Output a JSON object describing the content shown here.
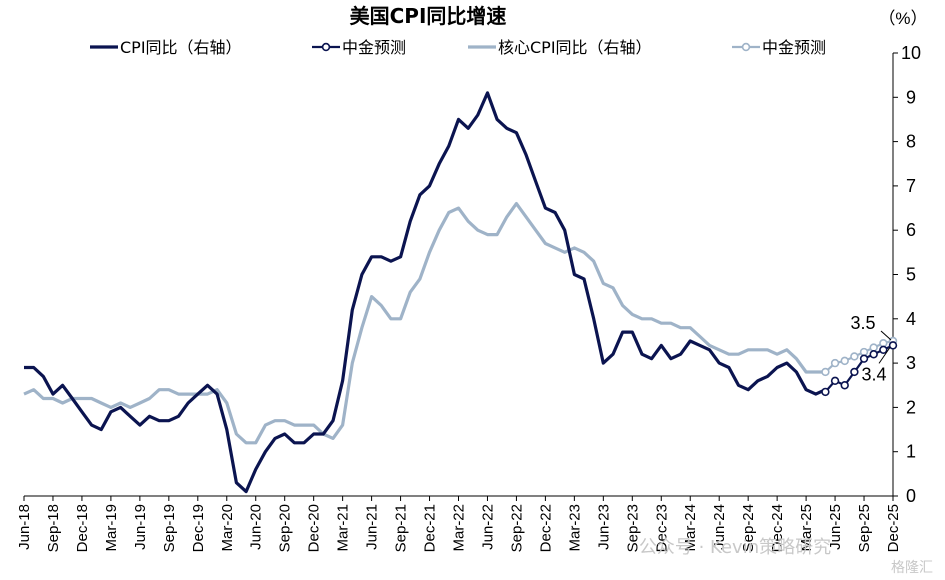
{
  "title": "美国CPI同比增速",
  "unit": "（%）",
  "watermark": "公众号 · Kevin策略研究",
  "corner_mark": "格隆汇",
  "colors": {
    "cpi": "#0b1450",
    "core": "#9fb3c8",
    "axis": "#000000"
  },
  "legend": [
    {
      "label": "CPI同比（右轴）",
      "style": "cpi-line"
    },
    {
      "label": "中金预测",
      "style": "cpi-forecast"
    },
    {
      "label": "核心CPI同比（右轴）",
      "style": "core-line"
    },
    {
      "label": "中金预测",
      "style": "core-forecast"
    }
  ],
  "annotations": {
    "core_end": "3.5",
    "cpi_end": "3.4"
  },
  "chart_data": {
    "type": "line",
    "ylim": [
      0,
      10
    ],
    "y_ticks": [
      0,
      1,
      2,
      3,
      4,
      5,
      6,
      7,
      8,
      9,
      10
    ],
    "y_axis_side": "right",
    "x_tick_labels": [
      "Jun-18",
      "Sep-18",
      "Dec-18",
      "Mar-19",
      "Jun-19",
      "Sep-19",
      "Dec-19",
      "Mar-20",
      "Jun-20",
      "Sep-20",
      "Dec-20",
      "Mar-21",
      "Jun-21",
      "Sep-21",
      "Dec-21",
      "Mar-22",
      "Jun-22",
      "Sep-22",
      "Dec-22",
      "Mar-23",
      "Jun-23",
      "Sep-23",
      "Dec-23",
      "Mar-24",
      "Jun-24",
      "Sep-24",
      "Dec-24",
      "Mar-25",
      "Jun-25",
      "Sep-25",
      "Dec-25"
    ],
    "x_start": "Jun-18",
    "x_end": "Dec-25",
    "legend_position": "top",
    "series": [
      {
        "name": "CPI同比（右轴）",
        "x_start": "Jun-18",
        "values": [
          2.9,
          2.9,
          2.7,
          2.3,
          2.5,
          2.2,
          1.9,
          1.6,
          1.5,
          1.9,
          2.0,
          1.8,
          1.6,
          1.8,
          1.7,
          1.7,
          1.8,
          2.1,
          2.3,
          2.5,
          2.3,
          1.5,
          0.3,
          0.1,
          0.6,
          1.0,
          1.3,
          1.4,
          1.2,
          1.2,
          1.4,
          1.4,
          1.7,
          2.6,
          4.2,
          5.0,
          5.4,
          5.4,
          5.3,
          5.4,
          6.2,
          6.8,
          7.0,
          7.5,
          7.9,
          8.5,
          8.3,
          8.6,
          9.1,
          8.5,
          8.3,
          8.2,
          7.7,
          7.1,
          6.5,
          6.4,
          6.0,
          5.0,
          4.9,
          4.0,
          3.0,
          3.2,
          3.7,
          3.7,
          3.2,
          3.1,
          3.4,
          3.1,
          3.2,
          3.5,
          3.4,
          3.3,
          3.0,
          2.9,
          2.5,
          2.4,
          2.6,
          2.7,
          2.9,
          3.0,
          2.8,
          2.4,
          2.3,
          2.4
        ]
      },
      {
        "name": "中金预测",
        "x_start": "May-25",
        "values": [
          2.35,
          2.6,
          2.5,
          2.8,
          3.1,
          3.2,
          3.3,
          3.4
        ]
      },
      {
        "name": "核心CPI同比（右轴）",
        "x_start": "Jun-18",
        "values": [
          2.3,
          2.4,
          2.2,
          2.2,
          2.1,
          2.2,
          2.2,
          2.2,
          2.1,
          2.0,
          2.1,
          2.0,
          2.1,
          2.2,
          2.4,
          2.4,
          2.3,
          2.3,
          2.3,
          2.3,
          2.4,
          2.1,
          1.4,
          1.2,
          1.2,
          1.6,
          1.7,
          1.7,
          1.6,
          1.6,
          1.6,
          1.4,
          1.3,
          1.6,
          3.0,
          3.8,
          4.5,
          4.3,
          4.0,
          4.0,
          4.6,
          4.9,
          5.5,
          6.0,
          6.4,
          6.5,
          6.2,
          6.0,
          5.9,
          5.9,
          6.3,
          6.6,
          6.3,
          6.0,
          5.7,
          5.6,
          5.5,
          5.6,
          5.5,
          5.3,
          4.8,
          4.7,
          4.3,
          4.1,
          4.0,
          4.0,
          3.9,
          3.9,
          3.8,
          3.8,
          3.6,
          3.4,
          3.3,
          3.2,
          3.2,
          3.3,
          3.3,
          3.3,
          3.2,
          3.3,
          3.1,
          2.8,
          2.8,
          2.8
        ]
      },
      {
        "name": "中金预测",
        "x_start": "May-25",
        "values": [
          2.8,
          3.0,
          3.05,
          3.15,
          3.25,
          3.35,
          3.45,
          3.5
        ]
      }
    ]
  }
}
